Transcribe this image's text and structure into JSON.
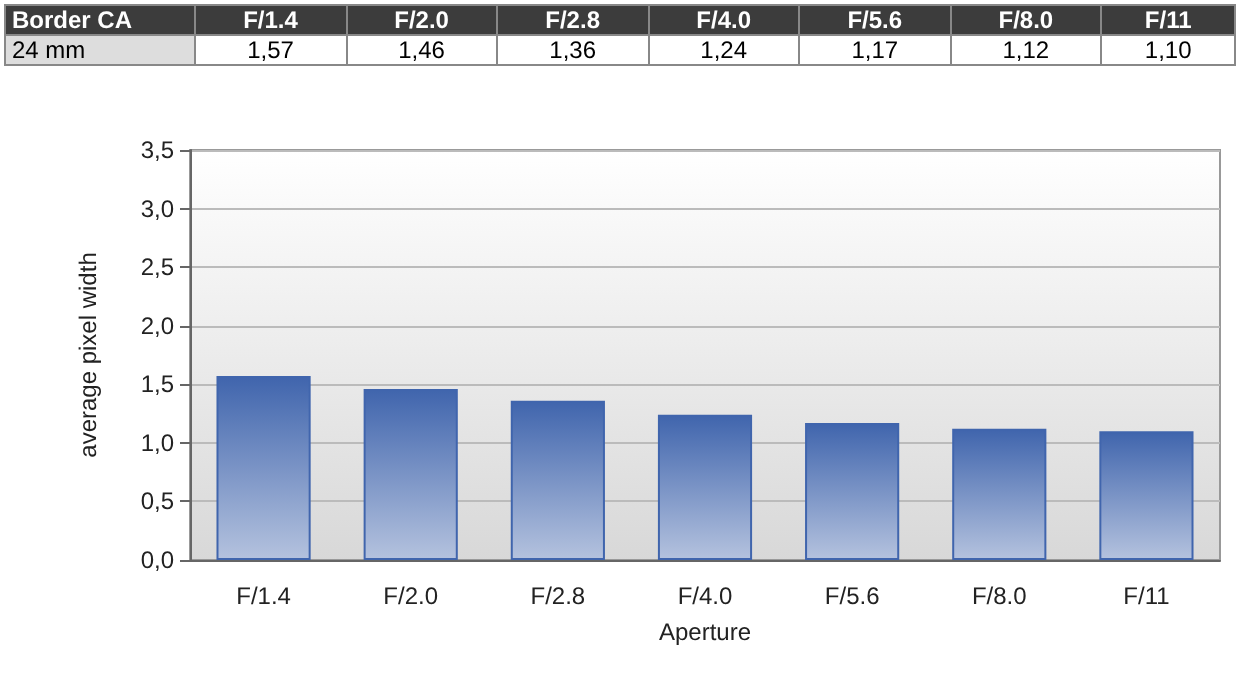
{
  "chart_data": {
    "type": "bar",
    "annotations": [
      "Border CA",
      "24 mm"
    ],
    "xlabel": "Aperture",
    "ylabel": "average pixel width",
    "categories": [
      "F/1.4",
      "F/2.0",
      "F/2.8",
      "F/4.0",
      "F/5.6",
      "F/8.0",
      "F/11"
    ],
    "values": [
      1.57,
      1.46,
      1.36,
      1.24,
      1.17,
      1.12,
      1.1
    ],
    "value_labels": [
      "1,57",
      "1,46",
      "1,36",
      "1,24",
      "1,17",
      "1,12",
      "1,10"
    ],
    "color": "#4065ad",
    "ylim": [
      0,
      3.5
    ],
    "yticks": [
      {
        "value": 0,
        "label": "0,0"
      },
      {
        "value": 0.5,
        "label": "0,5"
      },
      {
        "value": 1,
        "label": "1,0"
      },
      {
        "value": 1.5,
        "label": "1,5"
      },
      {
        "value": 2,
        "label": "2,0"
      },
      {
        "value": 2.5,
        "label": "2,5"
      },
      {
        "value": 3,
        "label": "3,0"
      },
      {
        "value": 3.5,
        "label": "3,5"
      }
    ],
    "grid": "y"
  }
}
